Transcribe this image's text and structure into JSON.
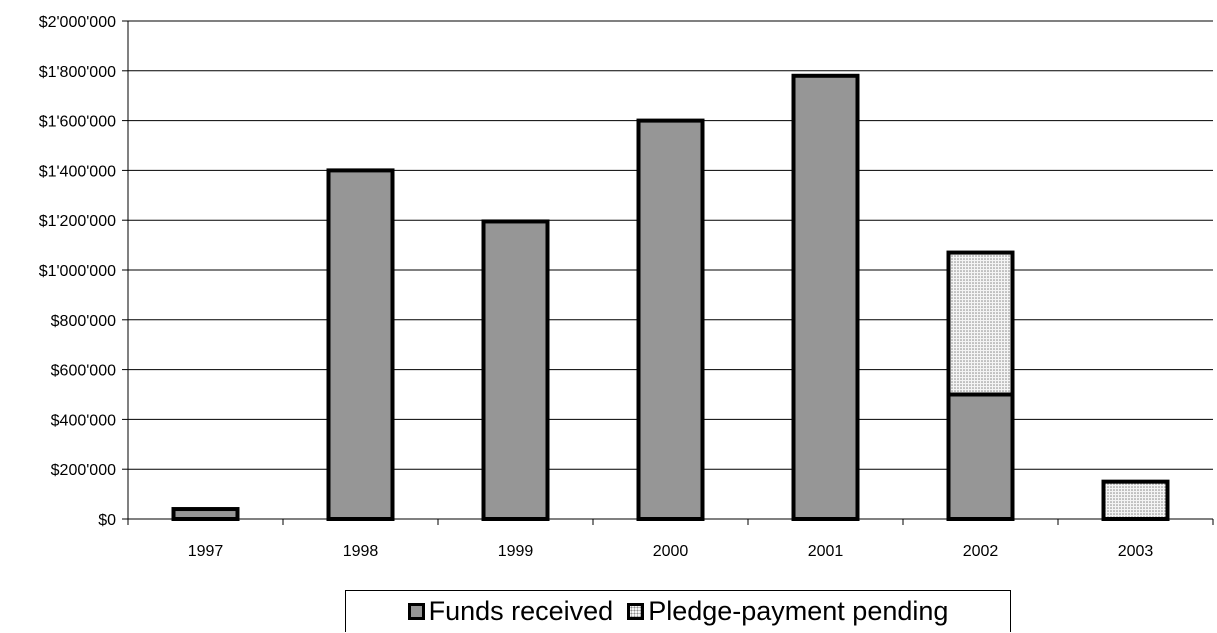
{
  "chart_data": {
    "type": "bar",
    "stacked": true,
    "categories": [
      "1997",
      "1998",
      "1999",
      "2000",
      "2001",
      "2002",
      "2003"
    ],
    "series": [
      {
        "name": "Funds received",
        "color": "#969696",
        "values": [
          40000,
          1400000,
          1195000,
          1600000,
          1780000,
          500000,
          0
        ]
      },
      {
        "name": "Pledge-payment pending",
        "color": "#e0e0e0",
        "pattern": "dotted",
        "values": [
          0,
          0,
          0,
          0,
          0,
          570000,
          150000
        ]
      }
    ],
    "ylim": [
      0,
      2000000
    ],
    "yticks": [
      "$0",
      "$200'000",
      "$400'000",
      "$600'000",
      "$800'000",
      "$1'000'000",
      "$1'200'000",
      "$1'400'000",
      "$1'600'000",
      "$1'800'000",
      "$2'000'000"
    ],
    "grid": true,
    "legend_position": "bottom"
  }
}
